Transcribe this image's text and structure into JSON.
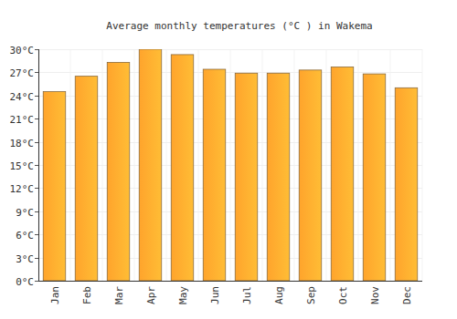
{
  "chart_data": {
    "type": "bar",
    "title": "Average monthly temperatures (°C ) in Wakema",
    "categories": [
      "Jan",
      "Feb",
      "Mar",
      "Apr",
      "May",
      "Jun",
      "Jul",
      "Aug",
      "Sep",
      "Oct",
      "Nov",
      "Dec"
    ],
    "values": [
      24.5,
      26.5,
      28.3,
      30.0,
      29.3,
      27.4,
      26.9,
      26.9,
      27.3,
      27.7,
      26.8,
      25.0
    ],
    "color": "#ffa42c",
    "ylim": [
      0,
      30
    ],
    "yticks": [
      {
        "value": 0,
        "label": "0°C"
      },
      {
        "value": 3,
        "label": "3°C"
      },
      {
        "value": 6,
        "label": "6°C"
      },
      {
        "value": 9,
        "label": "9°C"
      },
      {
        "value": 12,
        "label": "12°C"
      },
      {
        "value": 15,
        "label": "15°C"
      },
      {
        "value": 18,
        "label": "18°C"
      },
      {
        "value": 21,
        "label": "21°C"
      },
      {
        "value": 24,
        "label": "24°C"
      },
      {
        "value": 27,
        "label": "27°C"
      },
      {
        "value": 30,
        "label": "30°C"
      }
    ],
    "grid": true
  }
}
